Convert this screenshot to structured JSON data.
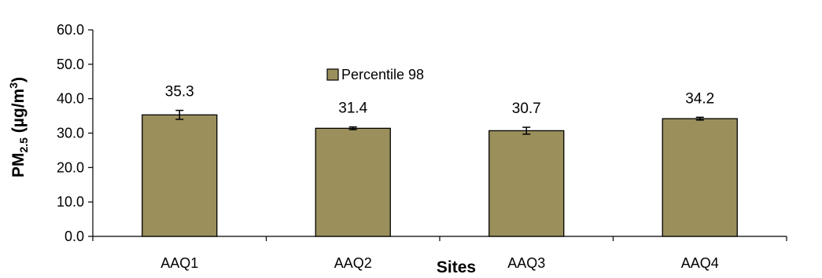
{
  "chart_data": {
    "type": "bar",
    "categories": [
      "AAQ1",
      "AAQ2",
      "AAQ3",
      "AAQ4"
    ],
    "series": [
      {
        "name": "Percentile 98",
        "values": [
          35.3,
          31.4,
          30.7,
          34.2
        ],
        "value_labels": [
          "35.3",
          "31.4",
          "30.7",
          "34.2"
        ],
        "error": [
          1.3,
          0.4,
          1.0,
          0.4
        ]
      }
    ],
    "title": "",
    "xlabel": "Sites",
    "ylabel_main": "PM",
    "ylabel_sub": "2.5",
    "ylabel_unit": " (µg/m",
    "ylabel_sup": "3",
    "ylabel_close": ")",
    "ylim": [
      0,
      60
    ],
    "yticks": [
      "0.0",
      "10.0",
      "20.0",
      "30.0",
      "40.0",
      "50.0",
      "60.0"
    ],
    "grid": false,
    "legend_position": "top-center",
    "colors": {
      "bar_fill": "#9b8f5c",
      "bar_stroke": "#000000"
    }
  }
}
